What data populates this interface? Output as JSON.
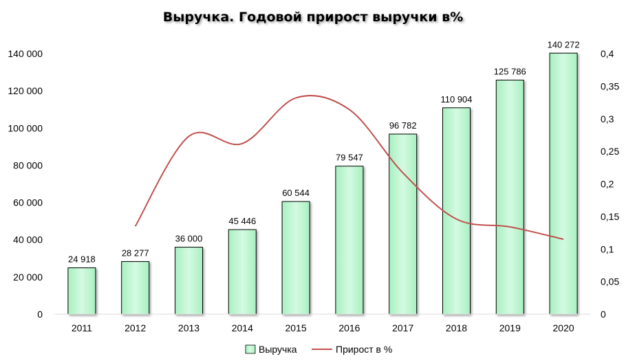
{
  "chart_data": {
    "type": "bar",
    "title": "Выручка. Годовой прирост выручки в%",
    "categories": [
      "2011",
      "2012",
      "2013",
      "2014",
      "2015",
      "2016",
      "2017",
      "2018",
      "2019",
      "2020"
    ],
    "series": [
      {
        "name": "Выручка",
        "type": "bar",
        "axis": "left",
        "values": [
          24918,
          28277,
          36000,
          45446,
          60544,
          79547,
          96782,
          110904,
          125786,
          140272
        ],
        "labels": [
          "24 918",
          "28 277",
          "36 000",
          "45 446",
          "60 544",
          "79 547",
          "96 782",
          "110 904",
          "125 786",
          "140 272"
        ],
        "color": "#c6f7d6",
        "border": "#000000"
      },
      {
        "name": "Прирост в %",
        "type": "line",
        "axis": "right",
        "values": [
          null,
          0.135,
          0.273,
          0.262,
          0.332,
          0.314,
          0.217,
          0.146,
          0.134,
          0.115
        ],
        "color": "#c0504d"
      }
    ],
    "y_left": {
      "ylim": [
        0,
        140000
      ],
      "ticks": [
        0,
        20000,
        40000,
        60000,
        80000,
        100000,
        120000,
        140000
      ],
      "tick_labels": [
        "0",
        "20 000",
        "40 000",
        "60 000",
        "80 000",
        "100 000",
        "120 000",
        "140 000"
      ]
    },
    "y_right": {
      "ylim": [
        0,
        0.4
      ],
      "ticks": [
        0,
        0.05,
        0.1,
        0.15,
        0.2,
        0.25,
        0.3,
        0.35,
        0.4
      ],
      "tick_labels": [
        "0",
        "0,05",
        "0,1",
        "0,15",
        "0,2",
        "0,25",
        "0,3",
        "0,35",
        "0,4"
      ]
    },
    "grid": false,
    "legend": "bottom"
  }
}
